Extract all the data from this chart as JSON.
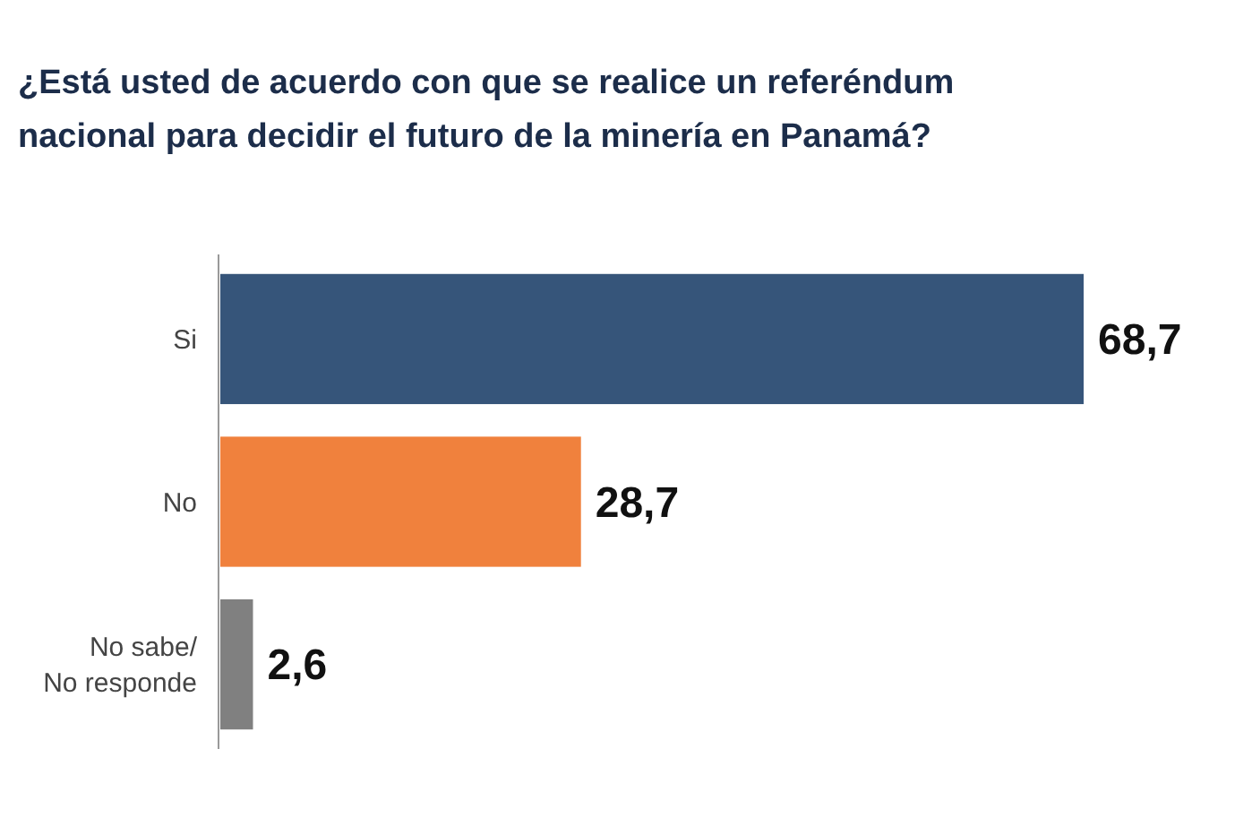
{
  "chart_data": {
    "type": "bar",
    "orientation": "horizontal",
    "title": "¿Está usted de acuerdo con que se realice un referéndum nacional para decidir el futuro de la minería en Panamá?",
    "categories": [
      "Si",
      "No",
      "No sabe/\nNo responde"
    ],
    "values": [
      68.7,
      28.7,
      2.6
    ],
    "colors": [
      "#36557a",
      "#f0813d",
      "#808080"
    ],
    "value_labels": [
      "68,7",
      "28,7",
      "2,6"
    ]
  }
}
